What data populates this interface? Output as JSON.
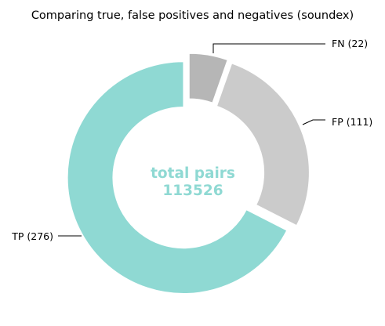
{
  "chart_data": {
    "type": "pie",
    "title": "Comparing true, false positives and negatives (soundex)",
    "center_label": {
      "line1": "total pairs",
      "line2": "113526",
      "color": "#8fd9d3"
    },
    "slices": [
      {
        "key": "fn",
        "label": "FN (22)",
        "value": 22,
        "color": "#b6b6b6"
      },
      {
        "key": "fp",
        "label": "FP (111)",
        "value": 111,
        "color": "#cbcbcb"
      },
      {
        "key": "tp",
        "label": "TP (276)",
        "value": 276,
        "color": "#8fd9d3"
      }
    ],
    "colors": {
      "background": "#ffffff",
      "slice_edge": "#ffffff",
      "leader_line": "#000000"
    }
  }
}
